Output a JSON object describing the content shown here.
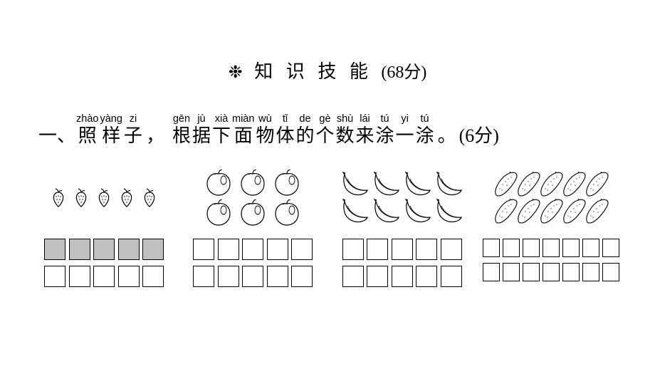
{
  "header": {
    "decor": "❉",
    "title_chars": [
      "知",
      "识",
      "技",
      "能"
    ],
    "points": "(68分)"
  },
  "question": {
    "prefix": "一、",
    "ruby": [
      {
        "py": "zhào",
        "ch": "照"
      },
      {
        "py": "yàng",
        "ch": "样"
      },
      {
        "py": "zi",
        "ch": "子"
      }
    ],
    "comma": "，",
    "ruby2": [
      {
        "py": "gēn",
        "ch": "根"
      },
      {
        "py": "jù",
        "ch": "据"
      },
      {
        "py": "xià",
        "ch": "下"
      },
      {
        "py": "miàn",
        "ch": "面"
      },
      {
        "py": "wù",
        "ch": "物"
      },
      {
        "py": "tǐ",
        "ch": "体"
      },
      {
        "py": "de",
        "ch": "的"
      },
      {
        "py": "gè",
        "ch": "个"
      },
      {
        "py": "shù",
        "ch": "数"
      },
      {
        "py": "lái",
        "ch": "来"
      },
      {
        "py": "tú",
        "ch": "涂"
      },
      {
        "py": "yi",
        "ch": "一"
      },
      {
        "py": "tú",
        "ch": "涂"
      }
    ],
    "period": "。",
    "suffix": "(6分)"
  },
  "groups": [
    {
      "name": "strawberries",
      "icon": "strawberry",
      "icon_count": 5,
      "cols_per_row": 5,
      "filled": [
        5,
        0
      ],
      "box_class": ""
    },
    {
      "name": "apples",
      "icon": "apple",
      "icon_count": 6,
      "cols_per_row": 5,
      "filled": [
        0,
        0
      ],
      "box_class": ""
    },
    {
      "name": "bananas",
      "icon": "banana",
      "icon_count": 8,
      "cols_per_row": 5,
      "filled": [
        0,
        0
      ],
      "box_class": ""
    },
    {
      "name": "cucumbers",
      "icon": "cucumber",
      "icon_count": 10,
      "cols_per_row": 7,
      "filled": [
        0,
        0
      ],
      "box_class": "g-sm"
    }
  ],
  "style": {
    "box_border": "#000000",
    "box_fill": "#bfbfbf",
    "bg": "#ffffff"
  }
}
